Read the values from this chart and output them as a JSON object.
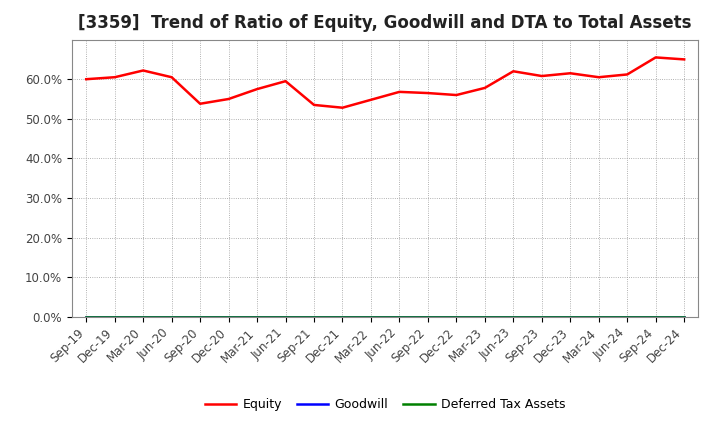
{
  "title": "[3359]  Trend of Ratio of Equity, Goodwill and DTA to Total Assets",
  "x_labels": [
    "Sep-19",
    "Dec-19",
    "Mar-20",
    "Jun-20",
    "Sep-20",
    "Dec-20",
    "Mar-21",
    "Jun-21",
    "Sep-21",
    "Dec-21",
    "Mar-22",
    "Jun-22",
    "Sep-22",
    "Dec-22",
    "Mar-23",
    "Jun-23",
    "Sep-23",
    "Dec-23",
    "Mar-24",
    "Jun-24",
    "Sep-24",
    "Dec-24"
  ],
  "equity": [
    60.0,
    60.5,
    62.2,
    60.5,
    53.8,
    55.0,
    57.5,
    59.5,
    53.5,
    52.8,
    54.8,
    56.8,
    56.5,
    56.0,
    57.8,
    62.0,
    60.8,
    61.5,
    60.5,
    61.2,
    65.5,
    65.0
  ],
  "goodwill": [
    0.0,
    0.0,
    0.0,
    0.0,
    0.0,
    0.0,
    0.0,
    0.0,
    0.0,
    0.0,
    0.0,
    0.0,
    0.0,
    0.0,
    0.0,
    0.0,
    0.0,
    0.0,
    0.0,
    0.0,
    0.0,
    0.0
  ],
  "dta": [
    0.0,
    0.0,
    0.0,
    0.0,
    0.0,
    0.0,
    0.0,
    0.0,
    0.0,
    0.0,
    0.0,
    0.0,
    0.0,
    0.0,
    0.0,
    0.0,
    0.0,
    0.0,
    0.0,
    0.0,
    0.0,
    0.0
  ],
  "equity_color": "#ff0000",
  "goodwill_color": "#0000ff",
  "dta_color": "#008000",
  "ylim": [
    0,
    70
  ],
  "yticks": [
    0,
    10,
    20,
    30,
    40,
    50,
    60
  ],
  "ytick_labels": [
    "0.0%",
    "10.0%",
    "20.0%",
    "30.0%",
    "40.0%",
    "50.0%",
    "60.0%"
  ],
  "background_color": "#ffffff",
  "grid_color": "#999999",
  "legend_entries": [
    "Equity",
    "Goodwill",
    "Deferred Tax Assets"
  ],
  "title_fontsize": 12,
  "tick_fontsize": 8.5,
  "legend_fontsize": 9
}
